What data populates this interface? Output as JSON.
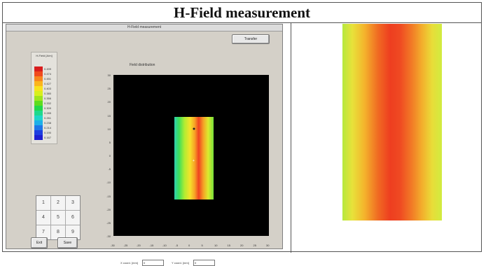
{
  "title": "H-Field measurement",
  "app": {
    "window_title": "H-Field measurement",
    "transfer_label": "Transfer",
    "plot_title": "Field distribution",
    "exit_label": "Exit",
    "save_label": "Save",
    "x_coord_label": "X coord. [mm]",
    "x_coord_value": "0",
    "y_coord_label": "Y coord. [mm]",
    "y_coord_value": "0"
  },
  "legend": {
    "title": "H-Field [A/m]",
    "entries": [
      {
        "value": "0.499",
        "color": "#d81e1e"
      },
      {
        "value": "0.474",
        "color": "#f04a1e"
      },
      {
        "value": "0.451",
        "color": "#f7861e"
      },
      {
        "value": "0.427",
        "color": "#fbb51e"
      },
      {
        "value": "0.403",
        "color": "#f8e21e"
      },
      {
        "value": "0.380",
        "color": "#d8ef1e"
      },
      {
        "value": "0.356",
        "color": "#9fe51e"
      },
      {
        "value": "0.332",
        "color": "#5edc1e"
      },
      {
        "value": "0.309",
        "color": "#22d84a"
      },
      {
        "value": "0.285",
        "color": "#1ed98c"
      },
      {
        "value": "0.261",
        "color": "#1ed5c8"
      },
      {
        "value": "0.238",
        "color": "#1eb0e8"
      },
      {
        "value": "0.214",
        "color": "#1e76e8"
      },
      {
        "value": "0.190",
        "color": "#1e3ee0"
      },
      {
        "value": "0.167",
        "color": "#1e1ed0"
      }
    ]
  },
  "keypad": [
    "1",
    "2",
    "3",
    "4",
    "5",
    "6",
    "7",
    "8",
    "9"
  ],
  "plot": {
    "y_ticks": [
      "30",
      "25",
      "20",
      "15",
      "10",
      "5",
      "0",
      "-5",
      "-10",
      "-15",
      "-20",
      "-25",
      "-30"
    ],
    "x_ticks": [
      "-30",
      "-25",
      "-20",
      "-15",
      "-10",
      "-5",
      "0",
      "5",
      "10",
      "15",
      "20",
      "25",
      "30"
    ]
  }
}
